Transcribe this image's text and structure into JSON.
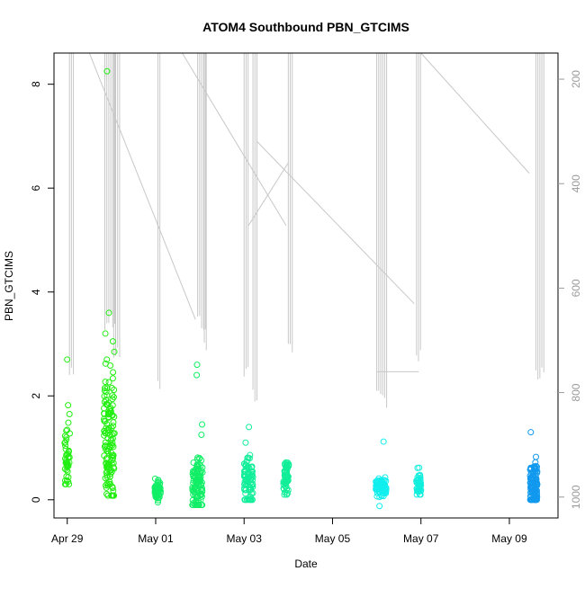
{
  "chart_data": {
    "type": "scatter",
    "title": "ATOM4 Southbound PBN_GTCIMS",
    "xlabel": "Date",
    "ylabel": "PBN_GTCIMS",
    "x_ticks": [
      "Apr 29",
      "May 01",
      "May 03",
      "May 05",
      "May 07",
      "May 09"
    ],
    "x_tick_days": [
      0,
      2,
      4,
      6,
      8,
      10
    ],
    "xlim_days": [
      -0.3,
      11.1
    ],
    "ylim": [
      -0.35,
      8.6
    ],
    "y_ticks": [
      0,
      2,
      4,
      6,
      8
    ],
    "y2_ticks": [
      200,
      400,
      600,
      800,
      1000
    ],
    "y2lim": [
      1040,
      150
    ],
    "y2_label": "",
    "grid": false,
    "legend": "none",
    "colors": {
      "green": "#22ee11",
      "teal": "#11ee88",
      "cyan": "#11eeee",
      "blue": "#1199ee",
      "track": "#c8c8c8"
    },
    "clusters": [
      {
        "center_day": 0.0,
        "spread_day": 0.06,
        "mean": 0.9,
        "sd": 0.45,
        "count": 45,
        "min": 0.3,
        "max": 2.7,
        "outliers": [
          2.7,
          1.82,
          1.65
        ],
        "color": "#22ee11"
      },
      {
        "center_day": 0.95,
        "spread_day": 0.12,
        "mean": 1.1,
        "sd": 0.7,
        "count": 140,
        "min": 0.08,
        "max": 3.6,
        "outliers": [
          8.25,
          3.6,
          3.2,
          3.05,
          2.7
        ],
        "color": "#22ee11"
      },
      {
        "center_day": 2.05,
        "spread_day": 0.07,
        "mean": 0.2,
        "sd": 0.12,
        "count": 55,
        "min": -0.05,
        "max": 0.5,
        "outliers": [],
        "color": "#11ee66"
      },
      {
        "center_day": 2.95,
        "spread_day": 0.12,
        "mean": 0.3,
        "sd": 0.25,
        "count": 110,
        "min": -0.1,
        "max": 1.45,
        "outliers": [
          2.6,
          2.4,
          1.45
        ],
        "color": "#11ee66"
      },
      {
        "center_day": 4.1,
        "spread_day": 0.1,
        "mean": 0.35,
        "sd": 0.22,
        "count": 85,
        "min": 0.0,
        "max": 1.4,
        "outliers": [
          1.4,
          1.1
        ],
        "color": "#11ee99"
      },
      {
        "center_day": 4.95,
        "spread_day": 0.06,
        "mean": 0.45,
        "sd": 0.22,
        "count": 60,
        "min": 0.1,
        "max": 0.95,
        "outliers": [],
        "color": "#11ee99"
      },
      {
        "center_day": 7.1,
        "spread_day": 0.12,
        "mean": 0.22,
        "sd": 0.1,
        "count": 80,
        "min": -0.12,
        "max": 0.5,
        "outliers": [
          1.12,
          -0.12
        ],
        "color": "#11eeee"
      },
      {
        "center_day": 7.95,
        "spread_day": 0.06,
        "mean": 0.3,
        "sd": 0.13,
        "count": 40,
        "min": 0.1,
        "max": 0.65,
        "outliers": [],
        "color": "#11eedd"
      },
      {
        "center_day": 10.55,
        "spread_day": 0.08,
        "mean": 0.3,
        "sd": 0.22,
        "count": 120,
        "min": 0.0,
        "max": 1.05,
        "outliers": [
          1.3
        ],
        "color": "#1199ee"
      }
    ],
    "track_passes": [
      {
        "day": 0.05,
        "bottom_y2": 760,
        "n": 3
      },
      {
        "day": 0.85,
        "bottom_y2": 660,
        "n": 6
      },
      {
        "day": 1.05,
        "bottom_y2": 720,
        "n": 4
      },
      {
        "day": 2.05,
        "bottom_y2": 790,
        "n": 2
      },
      {
        "day": 2.95,
        "bottom_y2": 665,
        "n": 5
      },
      {
        "day": 3.1,
        "bottom_y2": 720,
        "n": 2
      },
      {
        "day": 4.0,
        "bottom_y2": 760,
        "n": 3
      },
      {
        "day": 4.2,
        "bottom_y2": 800,
        "n": 3
      },
      {
        "day": 5.0,
        "bottom_y2": 710,
        "n": 3
      },
      {
        "day": 7.0,
        "bottom_y2": 810,
        "n": 6
      },
      {
        "day": 7.9,
        "bottom_y2": 730,
        "n": 3
      },
      {
        "day": 10.6,
        "bottom_y2": 760,
        "n": 5
      }
    ],
    "track_connectors": [
      [
        0.5,
        150,
        2.9,
        660
      ],
      [
        2.6,
        150,
        4.95,
        480
      ],
      [
        4.3,
        320,
        7.85,
        630
      ],
      [
        4.1,
        480,
        5.0,
        360
      ],
      [
        8.0,
        150,
        10.45,
        380
      ],
      [
        7.0,
        760,
        7.95,
        760
      ]
    ]
  }
}
